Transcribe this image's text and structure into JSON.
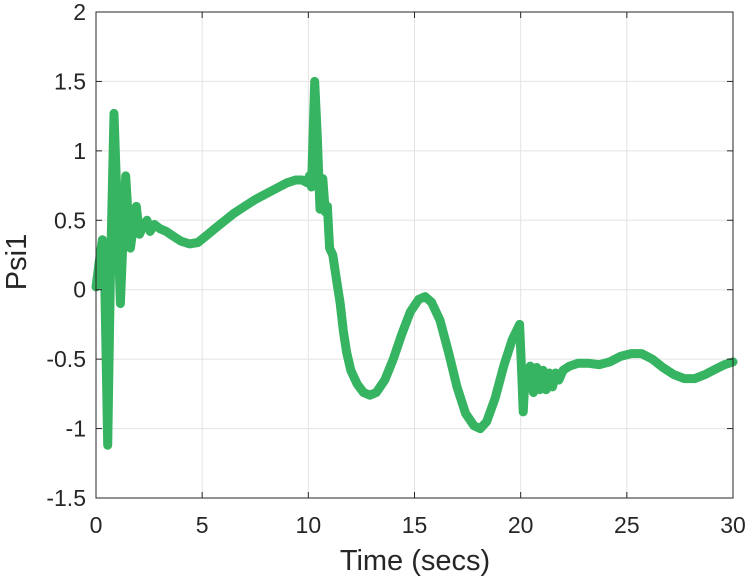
{
  "chart_data": {
    "type": "line",
    "title": "",
    "xlabel": "Time (secs)",
    "ylabel": "Psi1",
    "xlim": [
      0,
      30
    ],
    "ylim": [
      -1.5,
      2
    ],
    "xticks": [
      0,
      5,
      10,
      15,
      20,
      25,
      30
    ],
    "xticklabels": [
      "0",
      "5",
      "10",
      "15",
      "20",
      "25",
      "30"
    ],
    "yticks": [
      2,
      1.5,
      1,
      0.5,
      0,
      -0.5,
      -1,
      -1.5
    ],
    "yticklabels": [
      "2",
      "1.5",
      "1",
      "0.5",
      "0",
      "-0.5",
      "-1",
      "-1.5"
    ],
    "grid": true,
    "colors": {
      "line": "#37b462",
      "grid": "#e3e3e3",
      "axes": "#262626"
    },
    "series": [
      {
        "color": "#37b462",
        "x": [
          0,
          0.15,
          0.3,
          0.42,
          0.55,
          0.68,
          0.85,
          1.0,
          1.15,
          1.28,
          1.4,
          1.52,
          1.62,
          1.75,
          1.9,
          2.05,
          2.2,
          2.4,
          2.55,
          2.75,
          3.0,
          3.3,
          3.6,
          4.0,
          4.4,
          4.8,
          5.2,
          5.6,
          6.0,
          6.5,
          7.0,
          7.5,
          8.0,
          8.5,
          9.0,
          9.4,
          9.7,
          9.95,
          10.05,
          10.15,
          10.3,
          10.42,
          10.55,
          10.68,
          10.8,
          10.9,
          11.0,
          11.15,
          11.3,
          11.5,
          11.65,
          11.8,
          12.0,
          12.3,
          12.6,
          12.9,
          13.2,
          13.6,
          14.0,
          14.4,
          14.8,
          15.2,
          15.5,
          15.8,
          16.2,
          16.6,
          17.0,
          17.4,
          17.8,
          18.1,
          18.4,
          18.8,
          19.2,
          19.6,
          19.95,
          20.05,
          20.12,
          20.22,
          20.35,
          20.45,
          20.6,
          20.75,
          20.9,
          21.05,
          21.2,
          21.35,
          21.5,
          21.65,
          21.8,
          22.0,
          22.3,
          22.7,
          23.2,
          23.7,
          24.2,
          24.7,
          25.2,
          25.7,
          26.2,
          26.7,
          27.2,
          27.7,
          28.2,
          28.7,
          29.2,
          29.6,
          30.0
        ],
        "y": [
          0.02,
          0.2,
          0.36,
          0.0,
          -1.12,
          0.1,
          1.27,
          0.6,
          -0.1,
          0.4,
          0.82,
          0.5,
          0.3,
          0.45,
          0.6,
          0.4,
          0.45,
          0.5,
          0.42,
          0.47,
          0.44,
          0.42,
          0.39,
          0.35,
          0.33,
          0.34,
          0.39,
          0.44,
          0.49,
          0.55,
          0.6,
          0.65,
          0.69,
          0.73,
          0.77,
          0.79,
          0.79,
          0.77,
          0.82,
          0.74,
          1.5,
          1.1,
          0.58,
          0.8,
          0.56,
          0.6,
          0.3,
          0.25,
          0.1,
          -0.1,
          -0.3,
          -0.45,
          -0.58,
          -0.68,
          -0.74,
          -0.76,
          -0.74,
          -0.65,
          -0.5,
          -0.32,
          -0.16,
          -0.07,
          -0.05,
          -0.09,
          -0.22,
          -0.45,
          -0.7,
          -0.89,
          -0.98,
          -1.0,
          -0.95,
          -0.78,
          -0.55,
          -0.36,
          -0.25,
          -0.6,
          -0.88,
          -0.6,
          -0.7,
          -0.55,
          -0.74,
          -0.56,
          -0.72,
          -0.58,
          -0.72,
          -0.6,
          -0.7,
          -0.6,
          -0.65,
          -0.58,
          -0.55,
          -0.53,
          -0.53,
          -0.54,
          -0.52,
          -0.48,
          -0.46,
          -0.46,
          -0.5,
          -0.56,
          -0.61,
          -0.64,
          -0.64,
          -0.61,
          -0.57,
          -0.54,
          -0.52
        ]
      }
    ]
  }
}
